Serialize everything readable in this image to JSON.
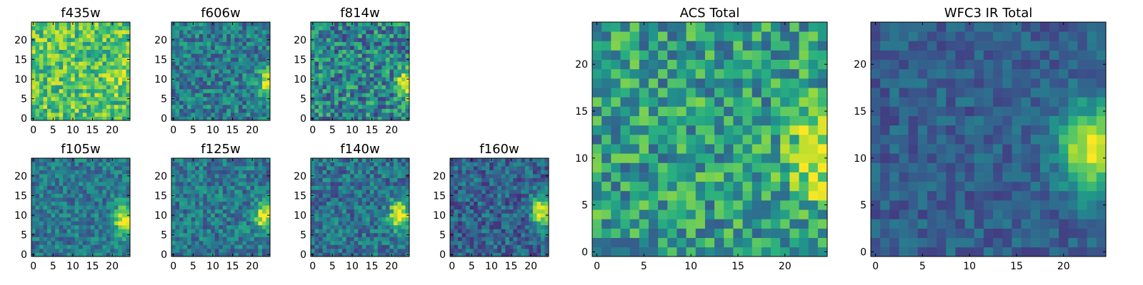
{
  "colormap": {
    "name": "viridis",
    "stops": [
      "#440154",
      "#472d7b",
      "#3b528b",
      "#2c728e",
      "#21918c",
      "#28ae80",
      "#5ec962",
      "#addc30",
      "#fde725"
    ]
  },
  "chart_data": [
    {
      "type": "heatmap",
      "id": "f435w",
      "title": "f435w",
      "grid": [
        25,
        25
      ],
      "xticks": [
        0,
        5,
        10,
        15,
        20
      ],
      "yticks": [
        0,
        5,
        10,
        15,
        20
      ],
      "source": {
        "x": 22,
        "y": 10,
        "sx": 1.8,
        "sy": 2.5,
        "amp": 0.08
      },
      "base": 0.72,
      "noise": 0.24,
      "seed": 11
    },
    {
      "type": "heatmap",
      "id": "f606w",
      "title": "f606w",
      "grid": [
        25,
        25
      ],
      "xticks": [
        0,
        5,
        10,
        15,
        20
      ],
      "yticks": [
        0,
        5,
        10,
        15,
        20
      ],
      "source": {
        "x": 24,
        "y": 9,
        "sx": 1.6,
        "sy": 2.6,
        "amp": 0.6
      },
      "base": 0.42,
      "noise": 0.22,
      "seed": 23
    },
    {
      "type": "heatmap",
      "id": "f814w",
      "title": "f814w",
      "grid": [
        25,
        25
      ],
      "xticks": [
        0,
        5,
        10,
        15,
        20
      ],
      "yticks": [
        0,
        5,
        10,
        15,
        20
      ],
      "source": {
        "x": 24,
        "y": 9,
        "sx": 1.6,
        "sy": 2.6,
        "amp": 0.65
      },
      "base": 0.45,
      "noise": 0.28,
      "seed": 37
    },
    {
      "type": "heatmap",
      "id": "f105w",
      "title": "f105w",
      "grid": [
        25,
        25
      ],
      "xticks": [
        0,
        5,
        10,
        15,
        20
      ],
      "yticks": [
        0,
        5,
        10,
        15,
        20
      ],
      "source": {
        "x": 23,
        "y": 9,
        "sx": 1.8,
        "sy": 2.8,
        "amp": 0.6
      },
      "base": 0.4,
      "noise": 0.18,
      "seed": 41
    },
    {
      "type": "heatmap",
      "id": "f125w",
      "title": "f125w",
      "grid": [
        25,
        25
      ],
      "xticks": [
        0,
        5,
        10,
        15,
        20
      ],
      "yticks": [
        0,
        5,
        10,
        15,
        20
      ],
      "source": {
        "x": 23,
        "y": 10,
        "sx": 1.8,
        "sy": 2.8,
        "amp": 0.6
      },
      "base": 0.4,
      "noise": 0.2,
      "seed": 53
    },
    {
      "type": "heatmap",
      "id": "f140w",
      "title": "f140w",
      "grid": [
        25,
        25
      ],
      "xticks": [
        0,
        5,
        10,
        15,
        20
      ],
      "yticks": [
        0,
        5,
        10,
        15,
        20
      ],
      "source": {
        "x": 22,
        "y": 10,
        "sx": 1.8,
        "sy": 2.6,
        "amp": 0.65
      },
      "base": 0.38,
      "noise": 0.2,
      "seed": 67
    },
    {
      "type": "heatmap",
      "id": "f160w",
      "title": "f160w",
      "grid": [
        25,
        25
      ],
      "xticks": [
        0,
        5,
        10,
        15,
        20
      ],
      "yticks": [
        0,
        5,
        10,
        15,
        20
      ],
      "source": {
        "x": 23,
        "y": 11,
        "sx": 1.8,
        "sy": 2.6,
        "amp": 0.7
      },
      "base": 0.32,
      "noise": 0.2,
      "seed": 79
    },
    {
      "type": "heatmap",
      "id": "acs-total",
      "title": "ACS Total",
      "grid": [
        25,
        25
      ],
      "xticks": [
        0,
        5,
        10,
        15,
        20
      ],
      "yticks": [
        0,
        5,
        10,
        15,
        20
      ],
      "source": {
        "x": 23,
        "y": 10,
        "sx": 1.8,
        "sy": 3.0,
        "amp": 0.45
      },
      "base": 0.55,
      "noise": 0.26,
      "seed": 97
    },
    {
      "type": "heatmap",
      "id": "wfc3-ir-total",
      "title": "WFC3 IR Total",
      "grid": [
        25,
        25
      ],
      "xticks": [
        0,
        5,
        10,
        15,
        20
      ],
      "yticks": [
        0,
        5,
        10,
        15,
        20
      ],
      "source": {
        "x": 23,
        "y": 11,
        "sx": 2.4,
        "sy": 3.2,
        "amp": 0.65
      },
      "base": 0.3,
      "noise": 0.12,
      "seed": 113
    }
  ]
}
